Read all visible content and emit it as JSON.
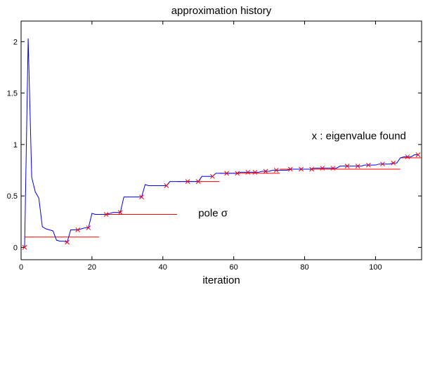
{
  "chart_data": {
    "type": "line",
    "title": "approximation history",
    "xlabel": "iteration",
    "ylabel": "",
    "xlim": [
      0,
      113
    ],
    "ylim": [
      -0.12,
      2.2
    ],
    "xticks": [
      0,
      20,
      40,
      60,
      80,
      100
    ],
    "yticks": [
      0,
      0.5,
      1,
      1.5,
      2
    ],
    "xtick_labels": [
      "0",
      "20",
      "40",
      "60",
      "80",
      "100"
    ],
    "ytick_labels": [
      "0",
      "0.5",
      "1",
      "1.5",
      "2"
    ],
    "grid": false,
    "colors": {
      "approximation": "#0000ff",
      "pole": "#ff0000",
      "eigenvalue": "#ff0000"
    },
    "series": [
      {
        "type": "line",
        "color": "#0000ff",
        "x": [
          1,
          2,
          3,
          4,
          5,
          6,
          7,
          8,
          9,
          10,
          11,
          12,
          13,
          14,
          15,
          16,
          17,
          18,
          19,
          20,
          21,
          22,
          23,
          24,
          25,
          26,
          27,
          28,
          29,
          30,
          31,
          32,
          33,
          34,
          35,
          36,
          37,
          38,
          39,
          40,
          41,
          42,
          43,
          44,
          45,
          46,
          47,
          48,
          49,
          50,
          51,
          52,
          53,
          54,
          55,
          56,
          57,
          58,
          59,
          60,
          61,
          62,
          63,
          64,
          65,
          66,
          67,
          68,
          69,
          70,
          71,
          72,
          73,
          74,
          75,
          76,
          77,
          78,
          79,
          80,
          81,
          82,
          83,
          84,
          85,
          86,
          87,
          88,
          89,
          90,
          91,
          92,
          93,
          94,
          95,
          96,
          97,
          98,
          99,
          100,
          101,
          102,
          103,
          104,
          105,
          106,
          107,
          108,
          109,
          110,
          111,
          112
        ],
        "y": [
          0.0,
          2.03,
          0.68,
          0.54,
          0.48,
          0.2,
          0.18,
          0.17,
          0.16,
          0.07,
          0.06,
          0.06,
          0.05,
          0.17,
          0.17,
          0.17,
          0.18,
          0.19,
          0.19,
          0.33,
          0.32,
          0.32,
          0.32,
          0.32,
          0.33,
          0.34,
          0.34,
          0.34,
          0.49,
          0.49,
          0.49,
          0.49,
          0.49,
          0.49,
          0.61,
          0.6,
          0.6,
          0.6,
          0.6,
          0.6,
          0.6,
          0.64,
          0.64,
          0.64,
          0.64,
          0.64,
          0.64,
          0.64,
          0.64,
          0.64,
          0.69,
          0.69,
          0.69,
          0.69,
          0.72,
          0.72,
          0.72,
          0.72,
          0.72,
          0.72,
          0.72,
          0.73,
          0.73,
          0.73,
          0.73,
          0.73,
          0.73,
          0.74,
          0.74,
          0.74,
          0.75,
          0.75,
          0.75,
          0.75,
          0.75,
          0.76,
          0.76,
          0.76,
          0.76,
          0.76,
          0.76,
          0.76,
          0.77,
          0.77,
          0.77,
          0.77,
          0.77,
          0.77,
          0.77,
          0.79,
          0.79,
          0.79,
          0.79,
          0.79,
          0.79,
          0.79,
          0.8,
          0.8,
          0.8,
          0.8,
          0.81,
          0.81,
          0.81,
          0.81,
          0.82,
          0.82,
          0.87,
          0.88,
          0.88,
          0.88,
          0.9,
          0.9
        ]
      },
      {
        "type": "markers",
        "marker": "x",
        "color": "#ff0000",
        "x": [
          1,
          13,
          16,
          19,
          24,
          28,
          34,
          41,
          47,
          50,
          54,
          58,
          61,
          64,
          66,
          69,
          72,
          76,
          79,
          82,
          85,
          88,
          92,
          95,
          98,
          102,
          105,
          109,
          112
        ],
        "y": [
          0.0,
          0.05,
          0.17,
          0.19,
          0.32,
          0.34,
          0.49,
          0.6,
          0.64,
          0.64,
          0.69,
          0.72,
          0.72,
          0.73,
          0.73,
          0.74,
          0.75,
          0.76,
          0.76,
          0.76,
          0.77,
          0.77,
          0.79,
          0.79,
          0.8,
          0.81,
          0.82,
          0.88,
          0.9
        ]
      },
      {
        "type": "segments",
        "color": "#ff0000",
        "segments": [
          {
            "x0": 1,
            "x1": 22,
            "y": 0.1
          },
          {
            "x0": 22,
            "x1": 44,
            "y": 0.32
          },
          {
            "x0": 44,
            "x1": 56,
            "y": 0.64
          },
          {
            "x0": 56,
            "x1": 73,
            "y": 0.72
          },
          {
            "x0": 73,
            "x1": 107,
            "y": 0.76
          },
          {
            "x0": 107,
            "x1": 113,
            "y": 0.87
          }
        ]
      }
    ],
    "annotations": [
      {
        "text": "x : eigenvalue found",
        "x": 82,
        "y": 1.05
      },
      {
        "text": "pole σ",
        "x": 50,
        "y": 0.3
      }
    ]
  }
}
